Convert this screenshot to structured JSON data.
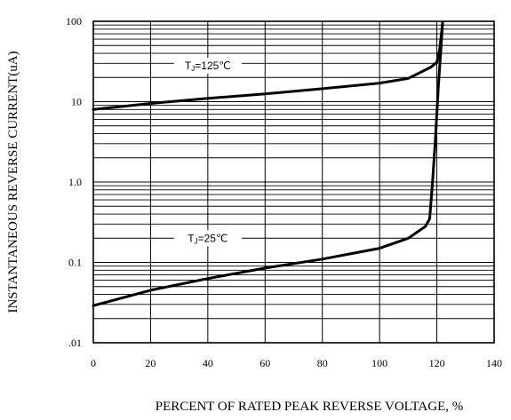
{
  "chart_data": {
    "type": "line",
    "xlabel": "PERCENT OF RATED PEAK REVERSE VOLTAGE, %",
    "ylabel": "INSTANTANEOUS REVERSE  CURRENT(uA)",
    "xlim": [
      0,
      140
    ],
    "ylim": [
      0.01,
      100
    ],
    "y_scale": "log",
    "grid": true,
    "x_ticks": [
      0,
      20,
      40,
      60,
      80,
      100,
      120,
      140
    ],
    "x_tick_labels": [
      "0",
      "20",
      "40",
      "60",
      "80",
      "100",
      "120",
      "140"
    ],
    "y_ticks": [
      0.01,
      0.1,
      1,
      10,
      100
    ],
    "y_tick_labels": [
      ".01",
      "0.1",
      "1.0",
      "10",
      "100"
    ],
    "series": [
      {
        "name": "TJ=125℃",
        "label": "TJ=125℃",
        "x": [
          0,
          20,
          40,
          60,
          80,
          100,
          110,
          118,
          120,
          121,
          122
        ],
        "y": [
          8,
          9.5,
          11,
          12.5,
          14.5,
          17,
          19.5,
          27,
          31,
          45,
          95
        ]
      },
      {
        "name": "TJ=25℃",
        "label": "TJ=25℃",
        "x": [
          0,
          20,
          40,
          60,
          80,
          100,
          110,
          116,
          117.5,
          118.5,
          119.5,
          120.5,
          121.5,
          122
        ],
        "y": [
          0.029,
          0.045,
          0.063,
          0.085,
          0.11,
          0.15,
          0.2,
          0.28,
          0.35,
          1.0,
          3.5,
          15,
          50,
          95
        ]
      }
    ]
  }
}
